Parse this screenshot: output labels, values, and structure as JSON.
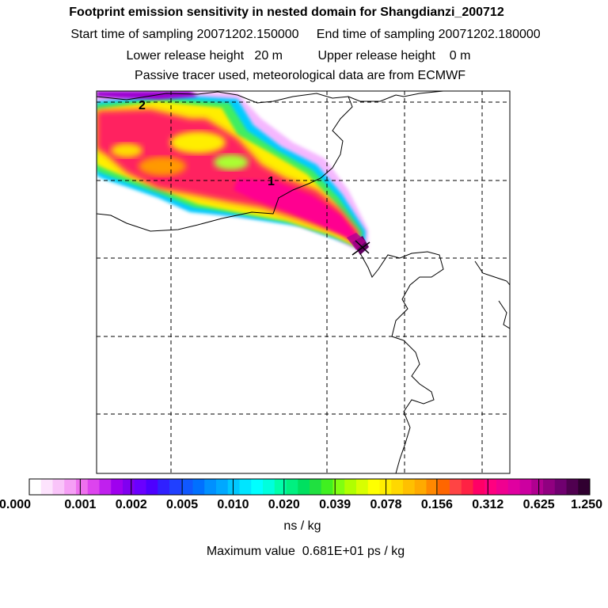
{
  "header": {
    "title": "Footprint emission sensitivity in nested domain for Shangdianzi_200712",
    "start_time_label": "Start time of sampling",
    "start_time": "20071202.150000",
    "end_time_label": "End time of sampling",
    "end_time": "20071202.180000",
    "lower_height_label": "Lower release height",
    "lower_height": "20 m",
    "upper_height_label": "Upper release height",
    "upper_height": "0 m",
    "tracer_note": "Passive tracer used, meteorological data are from ECMWF"
  },
  "map": {
    "contour_labels": [
      "2",
      "1"
    ],
    "receptor_marker": "x-icon",
    "grid": true,
    "plume_colors": [
      "#cc0099",
      "#ff007f",
      "#ff3366",
      "#ff9900",
      "#ffee00",
      "#b8ff00",
      "#55ff55",
      "#00ffaa",
      "#00e5ff",
      "#0099ff",
      "#6600ff",
      "#cc00ff",
      "#ff88ff"
    ]
  },
  "colorbar": {
    "ticks": [
      "0.000",
      "0.001",
      "0.002",
      "0.005",
      "0.010",
      "0.020",
      "0.039",
      "0.078",
      "0.156",
      "0.312",
      "0.625",
      "1.250"
    ],
    "colors": [
      "#ffffff",
      "#fde3fd",
      "#f9c4f9",
      "#f59ff5",
      "#ee70ee",
      "#dd44ee",
      "#c020ee",
      "#9f00ef",
      "#8000f0",
      "#6a00ff",
      "#4d00ff",
      "#3020ff",
      "#2040ff",
      "#1058ff",
      "#0070ff",
      "#0090ff",
      "#00a8ff",
      "#00c8ff",
      "#00e5ff",
      "#00ffff",
      "#00ffdd",
      "#00ffaa",
      "#00f080",
      "#00e060",
      "#20e040",
      "#40f020",
      "#80ff10",
      "#b0ff00",
      "#d8ff00",
      "#ffff00",
      "#ffee00",
      "#ffd800",
      "#ffc000",
      "#ffaa00",
      "#ff8800",
      "#ff6600",
      "#ff4444",
      "#ff2244",
      "#ff0066",
      "#ff0080",
      "#f00090",
      "#e000a0",
      "#cc00a0",
      "#b00090",
      "#900080",
      "#700070",
      "#500050",
      "#300030"
    ],
    "unit": "ns / kg",
    "max_label": "Maximum value",
    "max_value": "0.681E+01 ps / kg"
  }
}
